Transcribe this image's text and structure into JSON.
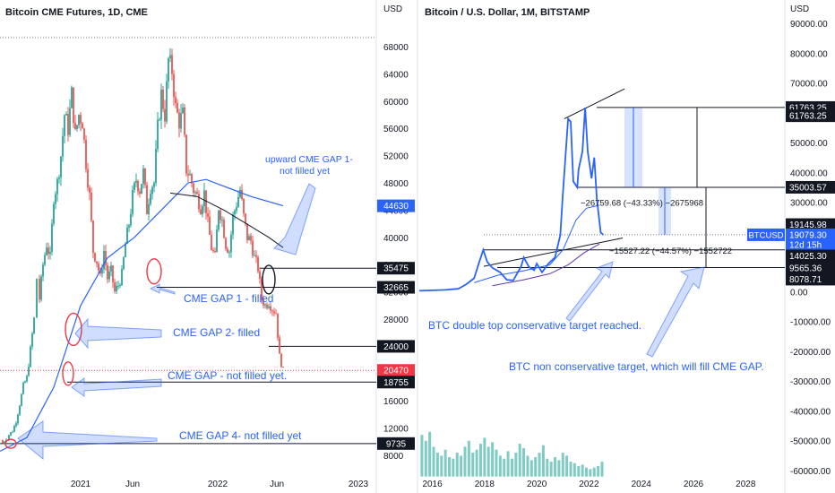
{
  "chart_data": [
    {
      "type": "candlestick",
      "title": "Bitcoin CME Futures, 1D, CME",
      "yaxis_unit": "USD",
      "ylim": [
        5000,
        72000
      ],
      "y_ticks": [
        8000,
        12000,
        16000,
        20000,
        24000,
        28000,
        32000,
        36000,
        40000,
        44000,
        48000,
        52000,
        56000,
        60000,
        64000,
        68000
      ],
      "x_ticks": [
        "2021",
        "Jun",
        "2022",
        "Jun",
        "2023"
      ],
      "price_tags": [
        {
          "value": 44630,
          "label": "44630",
          "color": "#2962ff"
        },
        {
          "value": 35475,
          "label": "35475",
          "color": "#131722"
        },
        {
          "value": 32665,
          "label": "32665",
          "color": "#131722"
        },
        {
          "value": 24000,
          "label": "24000",
          "color": "#131722"
        },
        {
          "value": 20470,
          "label": "20470",
          "color": "#f23645"
        },
        {
          "value": 18755,
          "label": "18755",
          "color": "#131722"
        },
        {
          "value": 9735,
          "label": "9735",
          "color": "#131722"
        }
      ],
      "series": [
        {
          "name": "",
          "type": "candles",
          "up_color": "#26a69a",
          "down_color": "#ef5350",
          "path": [
            [
              0,
              10200
            ],
            [
              3,
              9800
            ],
            [
              7,
              10500
            ],
            [
              10,
              11000
            ],
            [
              14,
              11600
            ],
            [
              18,
              13000
            ],
            [
              22,
              15500
            ],
            [
              26,
              18200
            ],
            [
              30,
              19400
            ],
            [
              34,
              23500
            ],
            [
              38,
              28000
            ],
            [
              41,
              34000
            ],
            [
              44,
              31000
            ],
            [
              48,
              36000
            ],
            [
              52,
              39000
            ],
            [
              56,
              37000
            ],
            [
              60,
              46000
            ],
            [
              64,
              48000
            ],
            [
              68,
              52000
            ],
            [
              72,
              58000
            ],
            [
              76,
              56000
            ],
            [
              80,
              61000
            ],
            [
              84,
              55000
            ],
            [
              88,
              58000
            ],
            [
              92,
              57000
            ],
            [
              96,
              51000
            ],
            [
              100,
              46000
            ],
            [
              104,
              38000
            ],
            [
              108,
              36500
            ],
            [
              112,
              34000
            ],
            [
              116,
              38000
            ],
            [
              120,
              34000
            ],
            [
              124,
              35000
            ],
            [
              128,
              32000
            ],
            [
              132,
              33000
            ],
            [
              136,
              34500
            ],
            [
              140,
              39000
            ],
            [
              144,
              42000
            ],
            [
              148,
              46000
            ],
            [
              152,
              48500
            ],
            [
              156,
              47000
            ],
            [
              160,
              49500
            ],
            [
              164,
              44000
            ],
            [
              168,
              47500
            ],
            [
              172,
              48000
            ],
            [
              176,
              56000
            ],
            [
              180,
              61000
            ],
            [
              184,
              58000
            ],
            [
              188,
              66000
            ],
            [
              192,
              64500
            ],
            [
              196,
              59000
            ],
            [
              200,
              57000
            ],
            [
              204,
              58000
            ],
            [
              208,
              50000
            ],
            [
              212,
              49000
            ],
            [
              216,
              47000
            ],
            [
              220,
              46000
            ],
            [
              224,
              44500
            ],
            [
              228,
              46500
            ],
            [
              232,
              42000
            ],
            [
              236,
              38500
            ],
            [
              240,
              37000
            ],
            [
              244,
              44500
            ],
            [
              248,
              42500
            ],
            [
              252,
              39000
            ],
            [
              256,
              38000
            ],
            [
              260,
              43000
            ],
            [
              264,
              45000
            ],
            [
              268,
              47000
            ],
            [
              272,
              43000
            ],
            [
              276,
              40000
            ],
            [
              280,
              39500
            ],
            [
              284,
              37000
            ],
            [
              288,
              35500
            ],
            [
              292,
              31000
            ],
            [
              296,
              30000
            ],
            [
              300,
              30500
            ],
            [
              304,
              29500
            ],
            [
              308,
              29000
            ],
            [
              312,
              22500
            ],
            [
              316,
              20500
            ]
          ]
        },
        {
          "name": "",
          "type": "line",
          "color": "#2962ff",
          "points": [
            [
              0,
              8600
            ],
            [
              30,
              10600
            ],
            [
              60,
              18000
            ],
            [
              90,
              30000
            ],
            [
              120,
              37000
            ],
            [
              150,
              40000
            ],
            [
              180,
              44000
            ],
            [
              210,
              48000
            ],
            [
              230,
              48500
            ],
            [
              250,
              47500
            ],
            [
              280,
              46000
            ],
            [
              316,
              44630
            ]
          ]
        },
        {
          "name": "",
          "type": "line",
          "color": "#131722",
          "points": [
            [
              190,
              46500
            ],
            [
              220,
              46000
            ],
            [
              250,
              44000
            ],
            [
              275,
              42000
            ],
            [
              300,
              40000
            ],
            [
              316,
              38500
            ]
          ]
        }
      ],
      "x_domain": [
        0,
        420
      ],
      "annotations": [
        {
          "text": "upward CME GAP  1-",
          "color": "#2962ff"
        },
        {
          "text": "not filled yet",
          "color": "#2962ff"
        },
        {
          "text": "CME GAP 1 - filled",
          "color": "#2962ff"
        },
        {
          "text": "CME GAP 2- filled",
          "color": "#2962ff"
        },
        {
          "text": "CME GAP - not filled yet.",
          "color": "#2962ff"
        },
        {
          "text": "CME GAP 4- not filled yet",
          "color": "#2962ff"
        }
      ]
    },
    {
      "type": "line",
      "title": "Bitcoin / U.S. Dollar, 1M, BITSTAMP",
      "yaxis_unit": "USD",
      "ylim": [
        -62000,
        93000
      ],
      "y_ticks": [
        -60000,
        -50000,
        -40000,
        -30000,
        -20000,
        -10000,
        0,
        10000,
        20000,
        30000,
        40000,
        50000,
        60000,
        70000,
        80000,
        90000
      ],
      "y_tick_labels": [
        "-60000.00",
        "-50000.00",
        "-40000.00",
        "-30000.00",
        "-20000.00",
        "-10000.00",
        "0.00",
        "10000.00",
        "20000.00",
        "30000.00",
        "40000.00",
        "50000.00",
        "60000.00",
        "70000.00",
        "80000.00",
        "90000.00"
      ],
      "x_ticks": [
        "2016",
        "2018",
        "2020",
        "2022",
        "2024",
        "2026",
        "2028"
      ],
      "x_domain": [
        2015.5,
        2029.5
      ],
      "price_tags": [
        {
          "value": 61763.25,
          "label": "61763.25",
          "color": "#131722"
        },
        {
          "value": 59000,
          "label": "61763.25",
          "color": "#131722"
        },
        {
          "value": 35003.57,
          "label": "35003.57",
          "color": "#131722"
        },
        {
          "value": 22500,
          "label": "19145.98",
          "color": "#131722"
        },
        {
          "value": 19079.3,
          "label": "19079.30",
          "color": "#2962ff",
          "symbol": "BTCUSD",
          "countdown": "12d 15h"
        },
        {
          "value": 12000,
          "label": "14025.30",
          "color": "#131722"
        },
        {
          "value": 8000,
          "label": "9565.36",
          "color": "#131722"
        },
        {
          "value": 4200,
          "label": "8078.71",
          "color": "#131722"
        }
      ],
      "series": [
        {
          "name": "",
          "type": "line",
          "color": "#2962ff",
          "points": [
            [
              2015.5,
              300
            ],
            [
              2016.5,
              600
            ],
            [
              2017.0,
              1000
            ],
            [
              2017.3,
              2500
            ],
            [
              2017.6,
              4500
            ],
            [
              2017.8,
              10000
            ],
            [
              2017.95,
              14000
            ],
            [
              2018.1,
              10000
            ],
            [
              2018.3,
              8000
            ],
            [
              2018.6,
              6500
            ],
            [
              2018.85,
              4000
            ],
            [
              2019.1,
              3800
            ],
            [
              2019.4,
              8500
            ],
            [
              2019.5,
              11500
            ],
            [
              2019.7,
              8300
            ],
            [
              2019.9,
              7200
            ],
            [
              2020.0,
              9400
            ],
            [
              2020.2,
              6500
            ],
            [
              2020.45,
              9500
            ],
            [
              2020.7,
              11500
            ],
            [
              2020.9,
              19000
            ],
            [
              2021.0,
              33000
            ],
            [
              2021.2,
              58000
            ],
            [
              2021.3,
              57000
            ],
            [
              2021.4,
              37000
            ],
            [
              2021.55,
              35000
            ],
            [
              2021.6,
              41000
            ],
            [
              2021.75,
              47000
            ],
            [
              2021.85,
              61763
            ],
            [
              2021.95,
              47000
            ],
            [
              2022.1,
              38000
            ],
            [
              2022.2,
              45000
            ],
            [
              2022.3,
              31000
            ],
            [
              2022.45,
              19800
            ],
            [
              2022.55,
              19079
            ]
          ]
        },
        {
          "name": "",
          "type": "line",
          "color": "#2962ff",
          "points": [
            [
              2017.6,
              3000
            ],
            [
              2018.5,
              5500
            ],
            [
              2019.5,
              7000
            ],
            [
              2020.5,
              9000
            ],
            [
              2021.0,
              14000
            ],
            [
              2021.5,
              24000
            ],
            [
              2021.9,
              28000
            ],
            [
              2022.4,
              29000
            ]
          ]
        },
        {
          "name": "",
          "type": "line",
          "color": "#5e35b1",
          "points": [
            [
              2018.3,
              2000
            ],
            [
              2019.5,
              4000
            ],
            [
              2020.5,
              6000
            ],
            [
              2021.2,
              9000
            ],
            [
              2021.8,
              13000
            ],
            [
              2022.4,
              16000
            ]
          ]
        },
        {
          "name": "",
          "type": "bar",
          "color": "#26a69a",
          "baseline": -62000,
          "points": [
            [
              2015.6,
              -48000
            ],
            [
              2015.75,
              -50000
            ],
            [
              2015.9,
              -47000
            ],
            [
              2016.05,
              -52000
            ],
            [
              2016.2,
              -54000
            ],
            [
              2016.35,
              -55000
            ],
            [
              2016.5,
              -53000
            ],
            [
              2016.65,
              -55500
            ],
            [
              2016.8,
              -56000
            ],
            [
              2016.95,
              -54000
            ],
            [
              2017.1,
              -55000
            ],
            [
              2017.25,
              -52000
            ],
            [
              2017.4,
              -50000
            ],
            [
              2017.55,
              -54000
            ],
            [
              2017.7,
              -53000
            ],
            [
              2017.85,
              -51000
            ],
            [
              2018.0,
              -49000
            ],
            [
              2018.15,
              -52000
            ],
            [
              2018.3,
              -50500
            ],
            [
              2018.45,
              -53000
            ],
            [
              2018.6,
              -55000
            ],
            [
              2018.75,
              -56000
            ],
            [
              2018.9,
              -53500
            ],
            [
              2019.05,
              -56000
            ],
            [
              2019.2,
              -54000
            ],
            [
              2019.35,
              -51000
            ],
            [
              2019.5,
              -52500
            ],
            [
              2019.65,
              -55000
            ],
            [
              2019.8,
              -56500
            ],
            [
              2019.95,
              -55500
            ],
            [
              2020.1,
              -54000
            ],
            [
              2020.25,
              -51500
            ],
            [
              2020.4,
              -56000
            ],
            [
              2020.55,
              -57000
            ],
            [
              2020.7,
              -55500
            ],
            [
              2020.85,
              -56500
            ],
            [
              2021.0,
              -54000
            ],
            [
              2021.15,
              -55000
            ],
            [
              2021.3,
              -57000
            ],
            [
              2021.45,
              -57500
            ],
            [
              2021.6,
              -58500
            ],
            [
              2021.75,
              -58000
            ],
            [
              2021.9,
              -59000
            ],
            [
              2022.05,
              -59500
            ],
            [
              2022.2,
              -59000
            ],
            [
              2022.35,
              -58500
            ],
            [
              2022.5,
              -57000
            ]
          ]
        }
      ],
      "annotations": [
        {
          "text": "−26759.68 (−43.33%) −2675968",
          "color": "#131722"
        },
        {
          "text": "−15527.22 (−44.57%) −1552722",
          "color": "#131722"
        },
        {
          "text": "BTC double top conservative target reached.",
          "color": "#2962ff"
        },
        {
          "text": "BTC non conservative target, which will fill CME GAP.",
          "color": "#2962ff"
        }
      ]
    }
  ]
}
